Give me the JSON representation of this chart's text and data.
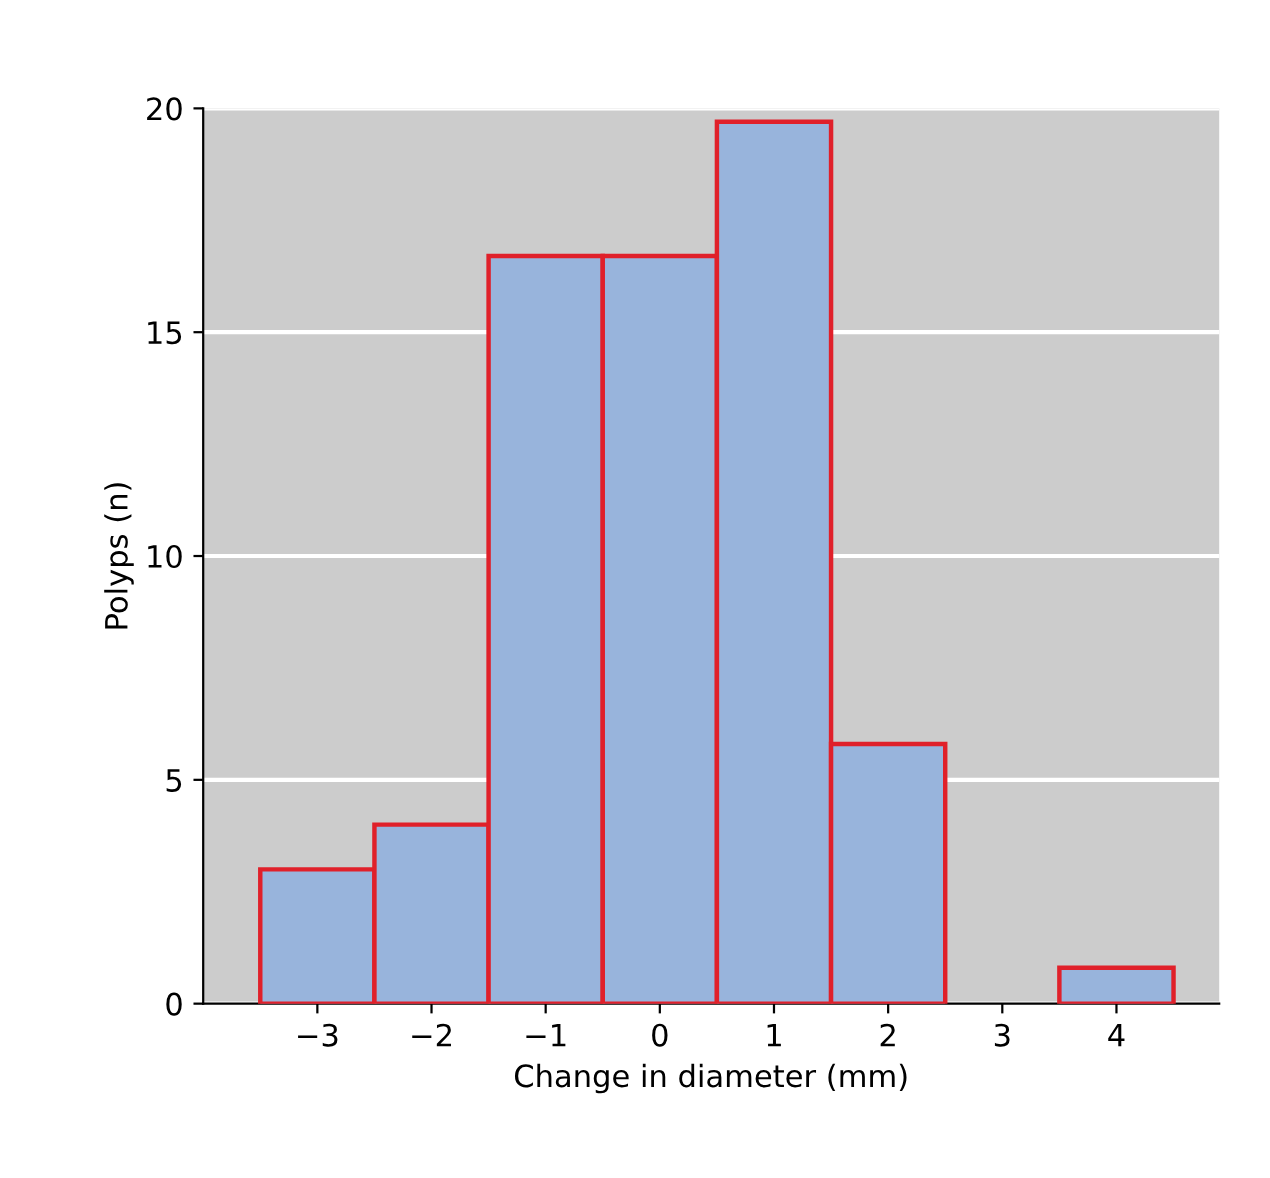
{
  "chart_data": {
    "type": "histogram",
    "xlabel": "Change in diameter (mm)",
    "ylabel": "Polyps (n)",
    "bins": [
      -3.5,
      -2.5,
      -1.5,
      -0.5,
      0.5,
      1.5,
      2.5,
      3.5,
      4.5
    ],
    "values": [
      3,
      4,
      16.7,
      16.7,
      19.7,
      5.8,
      0,
      0.8
    ],
    "color": "#98b4dc",
    "xlim": [
      -4,
      4.9
    ],
    "ylim": [
      0,
      20
    ],
    "xticks": [
      {
        "value": -3,
        "label": "−3"
      },
      {
        "value": -2,
        "label": "−2"
      },
      {
        "value": -1,
        "label": "−1"
      },
      0,
      1,
      2,
      3,
      4
    ],
    "yticks": [
      0,
      5,
      10,
      15,
      20
    ],
    "grid": "y"
  }
}
